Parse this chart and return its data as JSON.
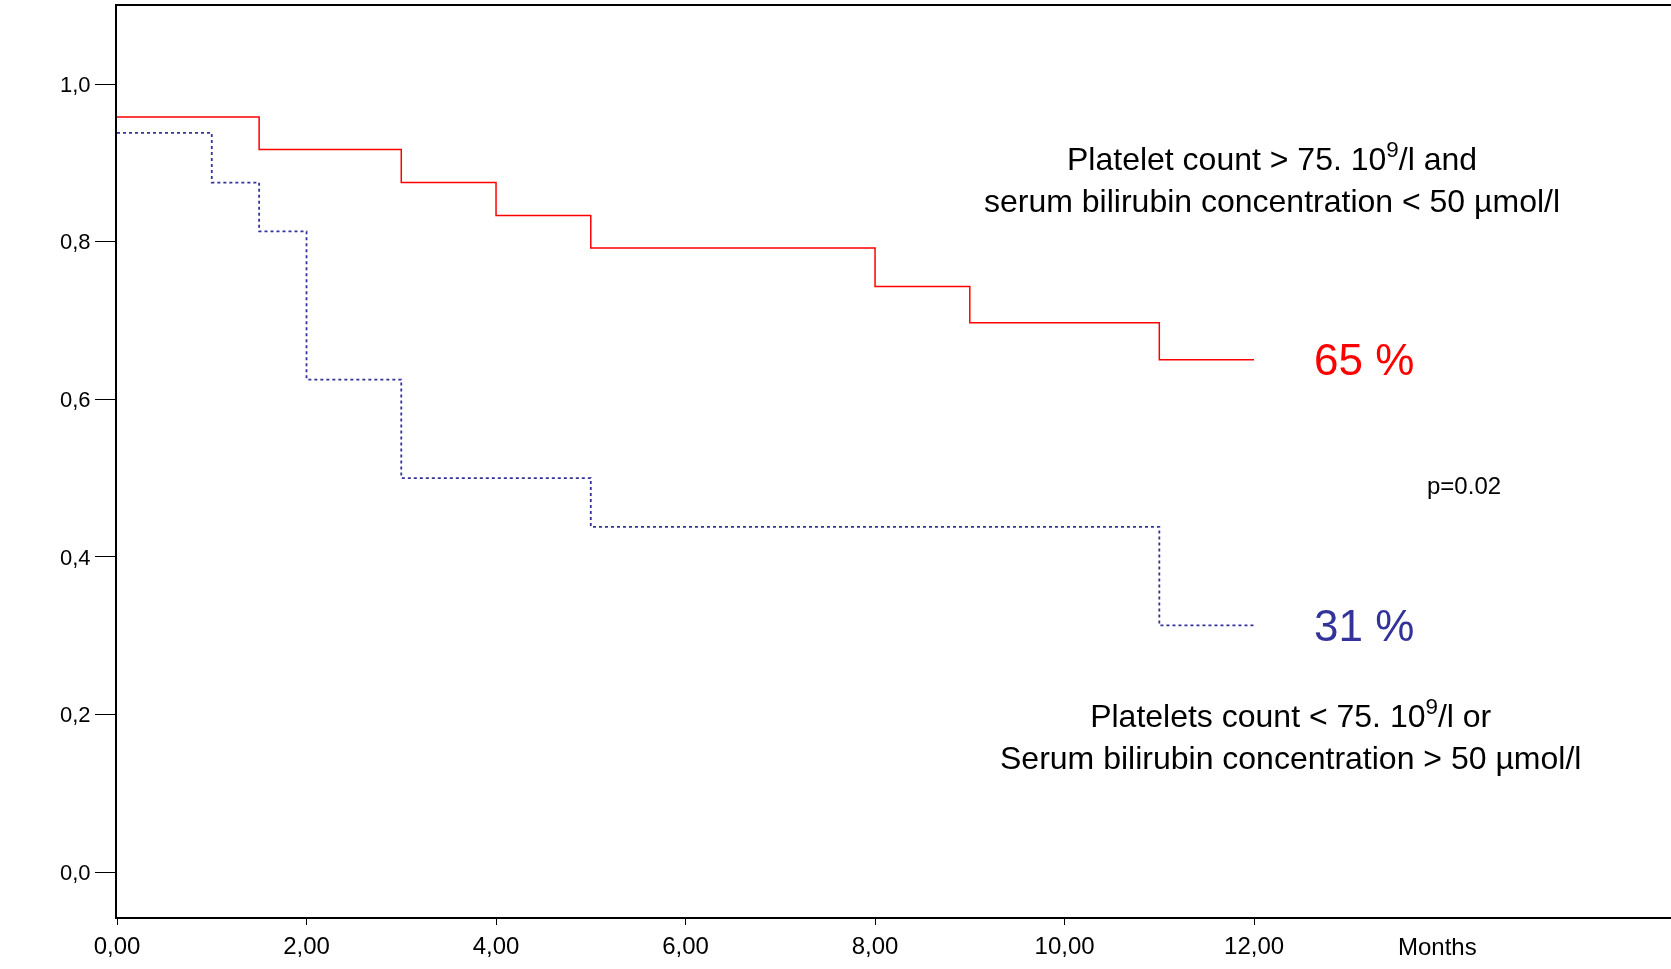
{
  "chart_data": {
    "type": "step",
    "xlabel": "Months",
    "series": [
      {
        "name": "65 %",
        "color": "#ff0000",
        "line_style": "solid",
        "x": [
          0,
          1.5,
          3,
          4,
          5,
          8,
          9,
          11,
          12
        ],
        "values": [
          0.958,
          0.917,
          0.875,
          0.833,
          0.792,
          0.743,
          0.697,
          0.65,
          0.65
        ]
      },
      {
        "name": "31 %",
        "color": "#333399",
        "line_style": "dotted",
        "x": [
          0,
          1,
          1.5,
          2,
          3,
          5,
          11,
          12
        ],
        "values": [
          0.938,
          0.875,
          0.813,
          0.625,
          0.5,
          0.438,
          0.313,
          0.313
        ]
      }
    ],
    "annotations": [
      "Platelet count > 75. 10$^{9}$/l and\nserum bilirubin concentration < 50 µmol/l",
      "Platelets count < 75. 10$^{9}$/l or\nSerum bilirubin concentration > 50 µmol/l",
      "p=0.02"
    ],
    "xlim": [
      0,
      16.4
    ],
    "ylim": [
      -0.057,
      1.099
    ],
    "xticks": [
      {
        "value": 0,
        "label": "0,00"
      },
      {
        "value": 2,
        "label": "2,00"
      },
      {
        "value": 4,
        "label": "4,00"
      },
      {
        "value": 6,
        "label": "6,00"
      },
      {
        "value": 8,
        "label": "8,00"
      },
      {
        "value": 10,
        "label": "10,00"
      },
      {
        "value": 12,
        "label": "12,00"
      }
    ],
    "yticks": [
      {
        "value": 0,
        "label": "0,0"
      },
      {
        "value": 0.2,
        "label": "0,2"
      },
      {
        "value": 0.4,
        "label": "0,4"
      },
      {
        "value": 0.6,
        "label": "0,6"
      },
      {
        "value": 0.8,
        "label": "0,8"
      },
      {
        "value": 1.0,
        "label": "1,0"
      }
    ],
    "legend": false
  }
}
